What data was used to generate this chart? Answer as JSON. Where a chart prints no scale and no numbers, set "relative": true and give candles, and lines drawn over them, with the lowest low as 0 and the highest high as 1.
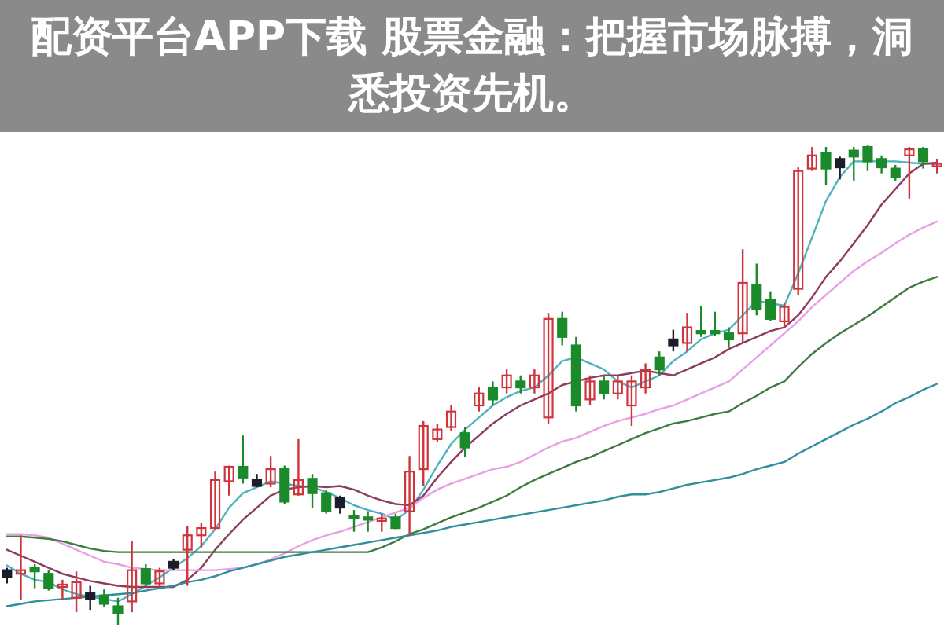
{
  "chart_data": {
    "type": "candlestick",
    "title": "配资平台APP下载 股票金融：把握市场脉搏，洞悉投资先机。",
    "relative": true,
    "categories": [
      null,
      null,
      null,
      null,
      null,
      null,
      null,
      null,
      null,
      null,
      null,
      null,
      null,
      null,
      null,
      null,
      null,
      null,
      null,
      null,
      null,
      null,
      null,
      null,
      null,
      null,
      null,
      null,
      null,
      null,
      null,
      null,
      null,
      null,
      null,
      null,
      null,
      null,
      null,
      null,
      null,
      null,
      null,
      null,
      null,
      null,
      null,
      null,
      null,
      null,
      null,
      null,
      null,
      null,
      null,
      null,
      null,
      null,
      null,
      null,
      null,
      null,
      null,
      null,
      null,
      null,
      null,
      null
    ],
    "ohlc": [
      [
        0.115,
        0.12,
        0.0875,
        0.1
      ],
      [
        0.1075,
        0.1875,
        0.0525,
        0.115
      ],
      [
        0.12,
        0.1275,
        0.0775,
        0.1125
      ],
      [
        0.1075,
        0.115,
        0.0725,
        0.0775
      ],
      [
        0.08,
        0.095,
        0.0525,
        0.085
      ],
      [
        0.0575,
        0.1125,
        0.0275,
        0.09
      ],
      [
        0.0675,
        0.0825,
        0.0325,
        0.055
      ],
      [
        0.0625,
        0.075,
        0.0375,
        0.045
      ],
      [
        0.04,
        0.0575,
        0,
        0.025
      ],
      [
        0.05,
        0.175,
        0.0275,
        0.115
      ],
      [
        0.1175,
        0.1275,
        0.0825,
        0.0875
      ],
      [
        0.0875,
        0.12,
        0.08,
        0.1125
      ],
      [
        0.1325,
        0.1375,
        0.115,
        0.12
      ],
      [
        0.1575,
        0.2075,
        0.0825,
        0.1875
      ],
      [
        0.1875,
        0.2125,
        0.1625,
        0.2025
      ],
      [
        0.2025,
        0.32,
        0.2,
        0.3025
      ],
      [
        0.3,
        0.3325,
        0.27,
        0.33
      ],
      [
        0.33,
        0.395,
        0.295,
        0.3075
      ],
      [
        0.3025,
        0.315,
        0.2875,
        0.29
      ],
      [
        0.295,
        0.3525,
        0.2875,
        0.325
      ],
      [
        0.325,
        0.3325,
        0.2525,
        0.2575
      ],
      [
        0.2725,
        0.3875,
        0.27,
        0.3025
      ],
      [
        0.305,
        0.315,
        0.245,
        0.275
      ],
      [
        0.275,
        0.2825,
        0.2325,
        0.2375
      ],
      [
        0.265,
        0.27,
        0.2325,
        0.245
      ],
      [
        0.2275,
        0.24,
        0.195,
        0.2225
      ],
      [
        0.225,
        0.2375,
        0.195,
        0.22
      ],
      [
        0.2175,
        0.2325,
        0.195,
        0.2225
      ],
      [
        0.225,
        0.2325,
        0.2,
        0.2025
      ],
      [
        0.2375,
        0.3525,
        0.1875,
        0.32
      ],
      [
        0.325,
        0.425,
        0.29,
        0.415
      ],
      [
        0.3875,
        0.42,
        0.3825,
        0.4075
      ],
      [
        0.4125,
        0.4575,
        0.405,
        0.445
      ],
      [
        0.4,
        0.4125,
        0.35,
        0.37
      ],
      [
        0.4575,
        0.495,
        0.445,
        0.4825
      ],
      [
        0.495,
        0.5075,
        0.4575,
        0.47
      ],
      [
        0.495,
        0.5325,
        0.4825,
        0.52
      ],
      [
        0.5075,
        0.52,
        0.4825,
        0.495
      ],
      [
        0.495,
        0.5325,
        0.4825,
        0.52
      ],
      [
        0.4325,
        0.65,
        0.42,
        0.6375
      ],
      [
        0.6375,
        0.6525,
        0.5825,
        0.6
      ],
      [
        0.5825,
        0.6,
        0.445,
        0.4575
      ],
      [
        0.47,
        0.52,
        0.4575,
        0.5075
      ],
      [
        0.5075,
        0.52,
        0.47,
        0.4825
      ],
      [
        0.4825,
        0.52,
        0.47,
        0.5075
      ],
      [
        0.4575,
        0.52,
        0.415,
        0.5075
      ],
      [
        0.495,
        0.545,
        0.4825,
        0.5325
      ],
      [
        0.5575,
        0.57,
        0.52,
        0.5325
      ],
      [
        0.595,
        0.615,
        0.57,
        0.5825
      ],
      [
        0.5875,
        0.65,
        0.57,
        0.62
      ],
      [
        0.6125,
        0.665,
        0.6,
        0.6075
      ],
      [
        0.6125,
        0.6525,
        0.6025,
        0.6075
      ],
      [
        0.6075,
        0.62,
        0.5775,
        0.595
      ],
      [
        0.6075,
        0.7825,
        0.5875,
        0.7125
      ],
      [
        0.7075,
        0.7525,
        0.645,
        0.6575
      ],
      [
        0.6775,
        0.695,
        0.6325,
        0.6375
      ],
      [
        0.6325,
        0.67,
        0.62,
        0.6625
      ],
      [
        0.7,
        0.9525,
        0.6875,
        0.945
      ],
      [
        0.95,
        0.995,
        0.945,
        0.9775
      ],
      [
        0.9825,
        0.995,
        0.915,
        0.95
      ],
      [
        0.97,
        0.975,
        0.9275,
        0.9525
      ],
      [
        0.9875,
        0.995,
        0.925,
        0.975
      ],
      [
        0.995,
        1,
        0.945,
        0.965
      ],
      [
        0.97,
        0.9775,
        0.94,
        0.9525
      ],
      [
        0.95,
        0.9575,
        0.925,
        0.9325
      ],
      [
        0.9775,
        0.995,
        0.8875,
        0.99
      ],
      [
        0.99,
        0.995,
        0.95,
        0.965
      ],
      [
        0.955,
        0.97,
        0.94,
        0.96
      ]
    ],
    "colors": [
      "#1c1c2a",
      "#d0343c",
      "#1a8a2a",
      "#1a8a2a",
      "#d0343c",
      "#d0343c",
      "#1c1c2a",
      "#1a8a2a",
      "#1a8a2a",
      "#d0343c",
      "#1a8a2a",
      "#d0343c",
      "#1c1c2a",
      "#d0343c",
      "#d0343c",
      "#d0343c",
      "#d0343c",
      "#1a8a2a",
      "#1c1c2a",
      "#d0343c",
      "#1a8a2a",
      "#d0343c",
      "#1a8a2a",
      "#1a8a2a",
      "#1c1c2a",
      "#1a8a2a",
      "#1a8a2a",
      "#d0343c",
      "#1a8a2a",
      "#d0343c",
      "#d0343c",
      "#d0343c",
      "#d0343c",
      "#1a8a2a",
      "#d0343c",
      "#1a8a2a",
      "#d0343c",
      "#1a8a2a",
      "#d0343c",
      "#d0343c",
      "#1a8a2a",
      "#1a8a2a",
      "#d0343c",
      "#1a8a2a",
      "#d0343c",
      "#d0343c",
      "#d0343c",
      "#1a8a2a",
      "#1c1c2a",
      "#d0343c",
      "#1a8a2a",
      "#1a8a2a",
      "#1a8a2a",
      "#d0343c",
      "#1a8a2a",
      "#1a8a2a",
      "#d0343c",
      "#d0343c",
      "#d0343c",
      "#1a8a2a",
      "#1c1c2a",
      "#1a8a2a",
      "#1a8a2a",
      "#1a8a2a",
      "#1a8a2a",
      "#d0343c",
      "#1a8a2a",
      "#d0343c"
    ],
    "series": [
      {
        "type": "line",
        "color": "#4fb3bf",
        "values": [
          0.125,
          0.1075,
          0.095,
          0.09,
          0.075,
          0.065,
          0.06,
          0.055,
          0.05,
          0.065,
          0.0825,
          0.1,
          0.12,
          0.14,
          0.165,
          0.2,
          0.245,
          0.275,
          0.2875,
          0.3,
          0.295,
          0.29,
          0.2875,
          0.2775,
          0.265,
          0.25,
          0.24,
          0.2325,
          0.22,
          0.24,
          0.2825,
          0.3325,
          0.3775,
          0.4075,
          0.4325,
          0.4575,
          0.475,
          0.4875,
          0.495,
          0.52,
          0.55,
          0.5575,
          0.545,
          0.5325,
          0.5075,
          0.495,
          0.5075,
          0.52,
          0.55,
          0.57,
          0.595,
          0.6075,
          0.615,
          0.645,
          0.675,
          0.67,
          0.665,
          0.7325,
          0.8075,
          0.8825,
          0.9325,
          0.965,
          0.965,
          0.965,
          0.965,
          0.9625,
          0.96,
          0.96
        ]
      },
      {
        "type": "line",
        "color": "#8e3b5e",
        "values": [
          0.1575,
          0.145,
          0.1325,
          0.12,
          0.1075,
          0.1,
          0.0925,
          0.0875,
          0.0825,
          0.08,
          0.08,
          0.08,
          0.08,
          0.095,
          0.12,
          0.1575,
          0.19,
          0.22,
          0.245,
          0.27,
          0.2825,
          0.2875,
          0.29,
          0.2875,
          0.29,
          0.2825,
          0.27,
          0.26,
          0.2525,
          0.25,
          0.27,
          0.3075,
          0.34,
          0.37,
          0.395,
          0.42,
          0.44,
          0.4575,
          0.47,
          0.4825,
          0.5,
          0.5075,
          0.515,
          0.52,
          0.52,
          0.525,
          0.53,
          0.525,
          0.52,
          0.5325,
          0.545,
          0.5575,
          0.575,
          0.5875,
          0.6,
          0.6125,
          0.62,
          0.645,
          0.6825,
          0.725,
          0.7575,
          0.795,
          0.8325,
          0.875,
          0.9075,
          0.94,
          0.96,
          0.9625
        ]
      },
      {
        "type": "line",
        "color": "#e7a0e8",
        "values": [
          0.19,
          0.19,
          0.1875,
          0.1825,
          0.17,
          0.1575,
          0.145,
          0.1325,
          0.1275,
          0.12,
          0.1175,
          0.115,
          0.115,
          0.115,
          0.115,
          0.115,
          0.1175,
          0.12,
          0.1275,
          0.1375,
          0.15,
          0.165,
          0.1775,
          0.1875,
          0.195,
          0.205,
          0.215,
          0.225,
          0.235,
          0.245,
          0.265,
          0.2825,
          0.295,
          0.305,
          0.315,
          0.325,
          0.33,
          0.34,
          0.355,
          0.37,
          0.3825,
          0.39,
          0.4025,
          0.415,
          0.425,
          0.4325,
          0.44,
          0.45,
          0.4575,
          0.47,
          0.4825,
          0.495,
          0.5075,
          0.5325,
          0.5575,
          0.5825,
          0.6075,
          0.6325,
          0.6625,
          0.6875,
          0.7125,
          0.7375,
          0.7575,
          0.775,
          0.795,
          0.8125,
          0.8275,
          0.84
        ]
      },
      {
        "type": "line",
        "color": "#3f7a3f",
        "values": [
          0.185,
          0.185,
          0.1825,
          0.18,
          0.175,
          0.1675,
          0.16,
          0.155,
          0.1525,
          0.1525,
          0.1525,
          0.1525,
          0.1525,
          0.1525,
          0.1525,
          0.1525,
          0.1525,
          0.1525,
          0.1525,
          0.1525,
          0.1525,
          0.1525,
          0.1525,
          0.1525,
          0.1525,
          0.1525,
          0.1525,
          0.1625,
          0.175,
          0.19,
          0.2,
          0.2125,
          0.225,
          0.235,
          0.245,
          0.2575,
          0.27,
          0.2875,
          0.3025,
          0.315,
          0.3275,
          0.34,
          0.35,
          0.3625,
          0.375,
          0.3875,
          0.4,
          0.41,
          0.42,
          0.425,
          0.4325,
          0.44,
          0.445,
          0.4625,
          0.4775,
          0.495,
          0.5075,
          0.5375,
          0.565,
          0.5875,
          0.6075,
          0.625,
          0.6425,
          0.6625,
          0.6825,
          0.7025,
          0.715,
          0.725
        ]
      },
      {
        "type": "line",
        "color": "#2f8f9a",
        "values": [
          0.04,
          0.045,
          0.05,
          0.0525,
          0.055,
          0.0575,
          0.06,
          0.0625,
          0.065,
          0.0675,
          0.0725,
          0.0775,
          0.0825,
          0.09,
          0.095,
          0.1025,
          0.1125,
          0.12,
          0.1275,
          0.135,
          0.1425,
          0.1475,
          0.1525,
          0.1575,
          0.1625,
          0.1675,
          0.1725,
          0.1775,
          0.1825,
          0.1875,
          0.1925,
          0.1975,
          0.205,
          0.21,
          0.215,
          0.22,
          0.225,
          0.23,
          0.235,
          0.24,
          0.245,
          0.25,
          0.255,
          0.26,
          0.2675,
          0.2725,
          0.2725,
          0.2775,
          0.285,
          0.2925,
          0.2975,
          0.3025,
          0.3075,
          0.315,
          0.325,
          0.3325,
          0.34,
          0.3575,
          0.3725,
          0.3875,
          0.4025,
          0.4175,
          0.43,
          0.445,
          0.4625,
          0.475,
          0.49,
          0.5025
        ]
      }
    ]
  }
}
